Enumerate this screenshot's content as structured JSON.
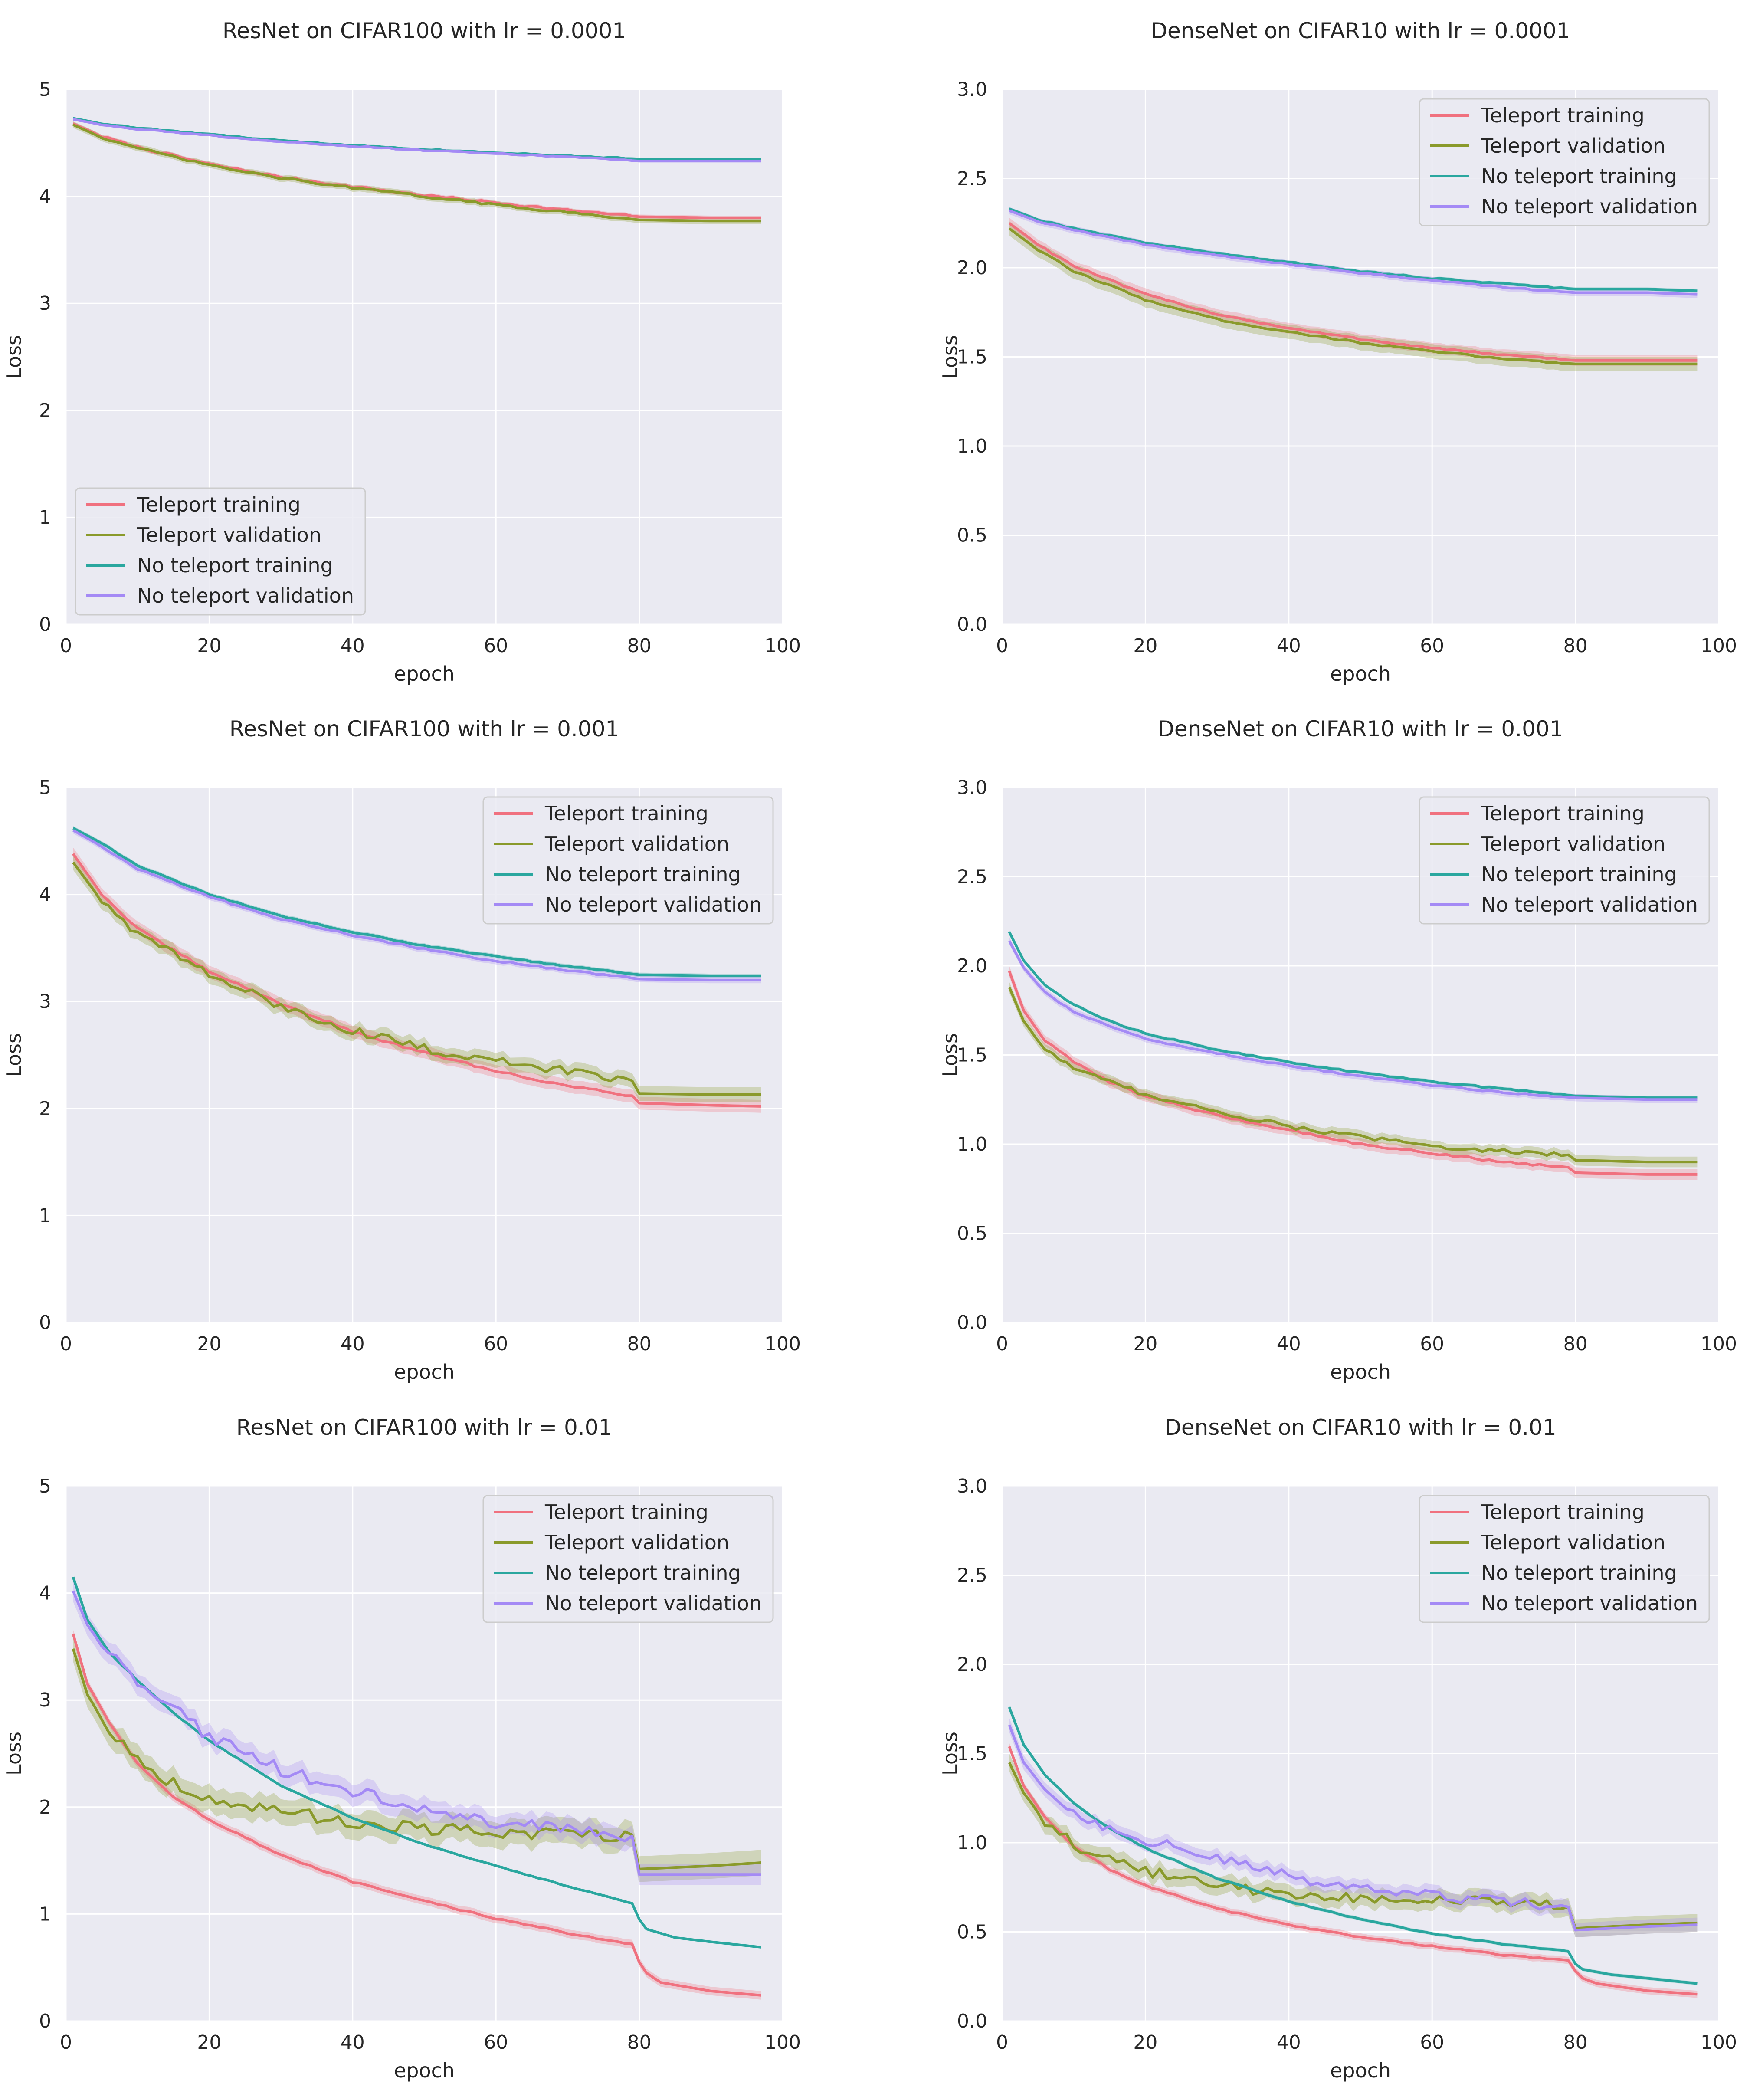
{
  "figure": {
    "background": "#ffffff",
    "plot_background": "#eaeaf2",
    "grid_color": "#ffffff",
    "series_names": [
      "Teleport training",
      "Teleport validation",
      "No teleport training",
      "No teleport validation"
    ],
    "series_colors": [
      "#f0717f",
      "#8a9a2b",
      "#2aa79f",
      "#a48af5"
    ]
  },
  "chart_data": [
    {
      "type": "line",
      "title": "ResNet on CIFAR100 with lr = 0.0001",
      "xlabel": "epoch",
      "ylabel": "Loss",
      "xlim": [
        0,
        100
      ],
      "ylim": [
        0,
        5
      ],
      "xticks": [
        0,
        20,
        40,
        60,
        80,
        100
      ],
      "yticks": [
        0,
        1,
        2,
        3,
        4,
        5
      ],
      "legend": "lower-left",
      "grid": true,
      "noise": [
        0.01,
        0.01,
        0.005,
        0.005
      ],
      "series": [
        {
          "name": "Teleport training",
          "x": [
            1,
            5,
            10,
            20,
            30,
            40,
            50,
            60,
            70,
            80,
            90,
            97
          ],
          "y": [
            4.68,
            4.56,
            4.46,
            4.3,
            4.18,
            4.09,
            4.01,
            3.94,
            3.87,
            3.81,
            3.8,
            3.8
          ],
          "band": 0.02
        },
        {
          "name": "Teleport validation",
          "x": [
            1,
            5,
            10,
            20,
            30,
            40,
            50,
            60,
            70,
            80,
            90,
            97
          ],
          "y": [
            4.67,
            4.55,
            4.45,
            4.29,
            4.17,
            4.08,
            4.0,
            3.92,
            3.85,
            3.78,
            3.77,
            3.77
          ],
          "band": 0.03
        },
        {
          "name": "No teleport training",
          "x": [
            1,
            5,
            10,
            20,
            30,
            40,
            50,
            60,
            70,
            80,
            90,
            97
          ],
          "y": [
            4.73,
            4.68,
            4.64,
            4.58,
            4.52,
            4.48,
            4.44,
            4.41,
            4.38,
            4.35,
            4.35,
            4.35
          ],
          "band": 0.01
        },
        {
          "name": "No teleport validation",
          "x": [
            1,
            5,
            10,
            20,
            30,
            40,
            50,
            60,
            70,
            80,
            90,
            97
          ],
          "y": [
            4.72,
            4.67,
            4.63,
            4.57,
            4.51,
            4.47,
            4.43,
            4.4,
            4.37,
            4.33,
            4.33,
            4.33
          ],
          "band": 0.01
        }
      ]
    },
    {
      "type": "line",
      "title": "DenseNet on CIFAR10 with lr = 0.0001",
      "xlabel": "epoch",
      "ylabel": "Loss",
      "xlim": [
        0,
        100
      ],
      "ylim": [
        0,
        3
      ],
      "xticks": [
        0,
        20,
        40,
        60,
        80,
        100
      ],
      "yticks": [
        0.0,
        0.5,
        1.0,
        1.5,
        2.0,
        2.5,
        3.0
      ],
      "ytick_decimals": 1,
      "legend": "top-right",
      "grid": true,
      "noise": [
        0.005,
        0.005,
        0.004,
        0.004
      ],
      "series": [
        {
          "name": "Teleport training",
          "x": [
            1,
            5,
            10,
            20,
            30,
            40,
            50,
            60,
            70,
            80,
            90,
            97
          ],
          "y": [
            2.25,
            2.13,
            2.01,
            1.85,
            1.74,
            1.66,
            1.6,
            1.55,
            1.51,
            1.48,
            1.48,
            1.48
          ],
          "band": 0.03
        },
        {
          "name": "Teleport validation",
          "x": [
            1,
            5,
            10,
            20,
            30,
            40,
            50,
            60,
            70,
            80,
            90,
            97
          ],
          "y": [
            2.22,
            2.1,
            1.98,
            1.82,
            1.71,
            1.64,
            1.58,
            1.53,
            1.49,
            1.46,
            1.46,
            1.46
          ],
          "band": 0.04
        },
        {
          "name": "No teleport training",
          "x": [
            1,
            5,
            10,
            20,
            30,
            40,
            50,
            60,
            70,
            80,
            90,
            97
          ],
          "y": [
            2.33,
            2.27,
            2.22,
            2.14,
            2.08,
            2.03,
            1.98,
            1.94,
            1.91,
            1.88,
            1.88,
            1.87
          ],
          "band": 0.01
        },
        {
          "name": "No teleport validation",
          "x": [
            1,
            5,
            10,
            20,
            30,
            40,
            50,
            60,
            70,
            80,
            90,
            97
          ],
          "y": [
            2.32,
            2.26,
            2.21,
            2.13,
            2.07,
            2.02,
            1.97,
            1.93,
            1.89,
            1.86,
            1.86,
            1.85
          ],
          "band": 0.02
        }
      ]
    },
    {
      "type": "line",
      "title": "ResNet on CIFAR100 with lr = 0.001",
      "xlabel": "epoch",
      "ylabel": "Loss",
      "xlim": [
        0,
        100
      ],
      "ylim": [
        0,
        5
      ],
      "xticks": [
        0,
        20,
        40,
        60,
        80,
        100
      ],
      "yticks": [
        0,
        1,
        2,
        3,
        4,
        5
      ],
      "legend": "top-right",
      "grid": true,
      "noise": [
        0.01,
        0.04,
        0.005,
        0.008
      ],
      "series": [
        {
          "name": "Teleport training",
          "x": [
            1,
            5,
            10,
            20,
            30,
            40,
            50,
            60,
            70,
            79,
            80,
            90,
            97
          ],
          "y": [
            4.38,
            4.0,
            3.68,
            3.28,
            2.98,
            2.72,
            2.52,
            2.35,
            2.21,
            2.12,
            2.05,
            2.03,
            2.02
          ],
          "band": 0.06
        },
        {
          "name": "Teleport validation",
          "x": [
            1,
            5,
            10,
            20,
            30,
            40,
            50,
            60,
            70,
            79,
            80,
            90,
            97
          ],
          "y": [
            4.3,
            3.94,
            3.64,
            3.25,
            2.95,
            2.73,
            2.56,
            2.44,
            2.35,
            2.26,
            2.14,
            2.13,
            2.13
          ],
          "band": 0.07
        },
        {
          "name": "No teleport training",
          "x": [
            1,
            5,
            10,
            20,
            30,
            40,
            50,
            60,
            70,
            80,
            90,
            97
          ],
          "y": [
            4.62,
            4.48,
            4.27,
            4.0,
            3.8,
            3.65,
            3.52,
            3.42,
            3.33,
            3.25,
            3.24,
            3.24
          ],
          "band": 0.02
        },
        {
          "name": "No teleport validation",
          "x": [
            1,
            5,
            10,
            20,
            30,
            40,
            50,
            60,
            70,
            80,
            90,
            97
          ],
          "y": [
            4.6,
            4.45,
            4.24,
            3.98,
            3.77,
            3.62,
            3.49,
            3.38,
            3.29,
            3.21,
            3.2,
            3.2
          ],
          "band": 0.03
        }
      ]
    },
    {
      "type": "line",
      "title": "DenseNet on CIFAR10 with lr = 0.001",
      "xlabel": "epoch",
      "ylabel": "Loss",
      "xlim": [
        0,
        100
      ],
      "ylim": [
        0,
        3
      ],
      "xticks": [
        0,
        20,
        40,
        60,
        80,
        100
      ],
      "yticks": [
        0.0,
        0.5,
        1.0,
        1.5,
        2.0,
        2.5,
        3.0
      ],
      "ytick_decimals": 1,
      "legend": "top-right",
      "grid": true,
      "noise": [
        0.006,
        0.012,
        0.004,
        0.004
      ],
      "series": [
        {
          "name": "Teleport training",
          "x": [
            1,
            3,
            6,
            10,
            15,
            20,
            30,
            40,
            50,
            60,
            70,
            79,
            80,
            90,
            97
          ],
          "y": [
            1.97,
            1.75,
            1.58,
            1.46,
            1.35,
            1.27,
            1.16,
            1.08,
            1.0,
            0.95,
            0.9,
            0.87,
            0.84,
            0.83,
            0.83
          ],
          "band": 0.03
        },
        {
          "name": "Teleport validation",
          "x": [
            1,
            3,
            6,
            10,
            15,
            20,
            30,
            40,
            50,
            60,
            70,
            79,
            80,
            90,
            97
          ],
          "y": [
            1.88,
            1.69,
            1.53,
            1.43,
            1.35,
            1.28,
            1.18,
            1.1,
            1.04,
            0.99,
            0.96,
            0.94,
            0.91,
            0.9,
            0.9
          ],
          "band": 0.03
        },
        {
          "name": "No teleport training",
          "x": [
            1,
            3,
            6,
            10,
            15,
            20,
            30,
            40,
            50,
            60,
            70,
            80,
            90,
            97
          ],
          "y": [
            2.19,
            2.03,
            1.89,
            1.78,
            1.69,
            1.62,
            1.53,
            1.46,
            1.4,
            1.35,
            1.31,
            1.27,
            1.26,
            1.26
          ],
          "band": 0.01
        },
        {
          "name": "No teleport validation",
          "x": [
            1,
            3,
            6,
            10,
            15,
            20,
            30,
            40,
            50,
            60,
            70,
            80,
            90,
            97
          ],
          "y": [
            2.14,
            1.99,
            1.85,
            1.74,
            1.66,
            1.59,
            1.51,
            1.44,
            1.38,
            1.33,
            1.29,
            1.26,
            1.25,
            1.25
          ],
          "band": 0.02
        }
      ]
    },
    {
      "type": "line",
      "title": "ResNet on CIFAR100 with lr = 0.01",
      "xlabel": "epoch",
      "ylabel": "Loss",
      "xlim": [
        0,
        100
      ],
      "ylim": [
        0,
        5
      ],
      "xticks": [
        0,
        20,
        40,
        60,
        80,
        100
      ],
      "yticks": [
        0,
        1,
        2,
        3,
        4,
        5
      ],
      "legend": "top-right",
      "grid": true,
      "noise": [
        0.008,
        0.06,
        0.004,
        0.06
      ],
      "series": [
        {
          "name": "Teleport training",
          "x": [
            1,
            3,
            6,
            10,
            15,
            20,
            30,
            40,
            50,
            60,
            70,
            79,
            80,
            81,
            83,
            90,
            97
          ],
          "y": [
            3.62,
            3.15,
            2.8,
            2.4,
            2.1,
            1.88,
            1.55,
            1.3,
            1.12,
            0.96,
            0.82,
            0.72,
            0.55,
            0.45,
            0.36,
            0.28,
            0.24
          ],
          "band": 0.04
        },
        {
          "name": "Teleport validation",
          "x": [
            1,
            3,
            6,
            10,
            15,
            20,
            30,
            40,
            50,
            60,
            70,
            79,
            80,
            90,
            97
          ],
          "y": [
            3.48,
            3.05,
            2.72,
            2.45,
            2.22,
            2.08,
            1.95,
            1.86,
            1.8,
            1.75,
            1.74,
            1.74,
            1.42,
            1.45,
            1.48
          ],
          "band": 0.12
        },
        {
          "name": "No teleport training",
          "x": [
            1,
            3,
            6,
            10,
            15,
            20,
            30,
            40,
            50,
            60,
            70,
            79,
            80,
            81,
            85,
            90,
            97
          ],
          "y": [
            4.15,
            3.75,
            3.45,
            3.18,
            2.88,
            2.62,
            2.2,
            1.9,
            1.65,
            1.45,
            1.26,
            1.1,
            0.95,
            0.86,
            0.78,
            0.74,
            0.69
          ],
          "band": 0.01
        },
        {
          "name": "No teleport validation",
          "x": [
            1,
            3,
            6,
            10,
            15,
            20,
            30,
            40,
            50,
            60,
            70,
            79,
            80,
            90,
            97
          ],
          "y": [
            4.02,
            3.7,
            3.42,
            3.18,
            2.92,
            2.65,
            2.35,
            2.15,
            1.98,
            1.86,
            1.78,
            1.73,
            1.37,
            1.37,
            1.37
          ],
          "band": 0.1
        }
      ]
    },
    {
      "type": "line",
      "title": "DenseNet on CIFAR10 with lr = 0.01",
      "xlabel": "epoch",
      "ylabel": "Loss",
      "xlim": [
        0,
        100
      ],
      "ylim": [
        0,
        3
      ],
      "xticks": [
        0,
        20,
        40,
        60,
        80,
        100
      ],
      "yticks": [
        0.0,
        0.5,
        1.0,
        1.5,
        2.0,
        2.5,
        3.0
      ],
      "ytick_decimals": 1,
      "legend": "top-right",
      "grid": true,
      "noise": [
        0.004,
        0.03,
        0.003,
        0.03
      ],
      "series": [
        {
          "name": "Teleport training",
          "x": [
            1,
            3,
            6,
            10,
            15,
            20,
            30,
            40,
            50,
            60,
            70,
            79,
            80,
            81,
            83,
            90,
            97
          ],
          "y": [
            1.54,
            1.32,
            1.14,
            0.98,
            0.85,
            0.76,
            0.63,
            0.54,
            0.47,
            0.42,
            0.37,
            0.34,
            0.28,
            0.24,
            0.21,
            0.17,
            0.15
          ],
          "band": 0.02
        },
        {
          "name": "Teleport validation",
          "x": [
            1,
            3,
            6,
            10,
            15,
            20,
            30,
            40,
            50,
            60,
            70,
            79,
            80,
            90,
            97
          ],
          "y": [
            1.45,
            1.28,
            1.12,
            0.99,
            0.9,
            0.84,
            0.76,
            0.71,
            0.69,
            0.68,
            0.66,
            0.64,
            0.52,
            0.54,
            0.55
          ],
          "band": 0.05
        },
        {
          "name": "No teleport training",
          "x": [
            1,
            3,
            6,
            10,
            15,
            20,
            30,
            40,
            50,
            60,
            70,
            79,
            80,
            81,
            85,
            90,
            97
          ],
          "y": [
            1.76,
            1.55,
            1.38,
            1.22,
            1.08,
            0.97,
            0.8,
            0.67,
            0.57,
            0.49,
            0.43,
            0.39,
            0.32,
            0.29,
            0.26,
            0.24,
            0.21
          ],
          "band": 0.01
        },
        {
          "name": "No teleport validation",
          "x": [
            1,
            3,
            6,
            10,
            15,
            20,
            30,
            40,
            50,
            60,
            70,
            79,
            80,
            90,
            97
          ],
          "y": [
            1.66,
            1.45,
            1.3,
            1.17,
            1.08,
            1.02,
            0.91,
            0.81,
            0.74,
            0.7,
            0.67,
            0.64,
            0.51,
            0.53,
            0.54
          ],
          "band": 0.04
        }
      ]
    }
  ]
}
